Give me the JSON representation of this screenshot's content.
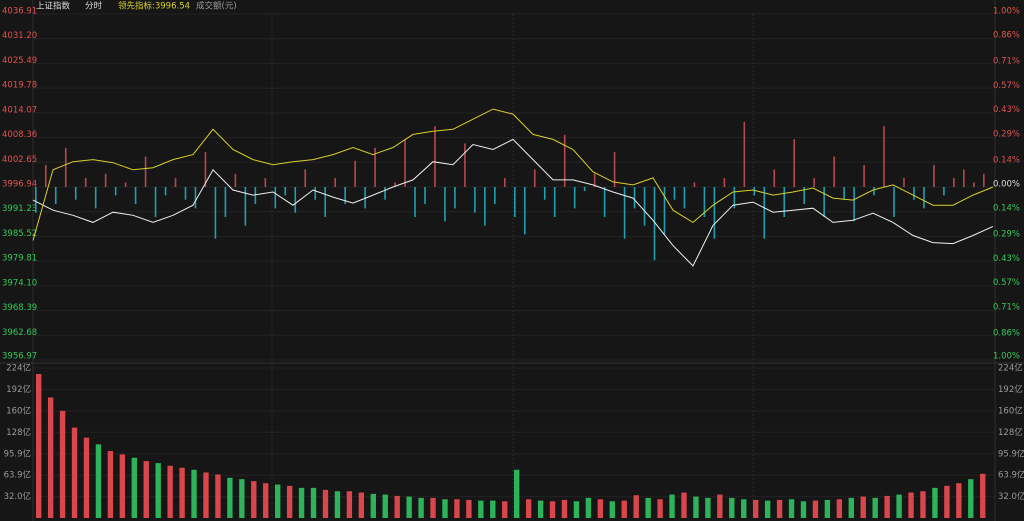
{
  "chart_data": [
    {
      "type": "line",
      "title": "上证指数",
      "subtitle": "分时",
      "ylim": [
        3956.97,
        4036.91
      ],
      "yticks": [
        4036.91,
        {
          "value": 4031.2,
          "label": "4031.20"
        },
        4025.49,
        4019.78,
        4014.07,
        4008.36,
        4002.65,
        3996.94,
        3991.23,
        3985.52,
        3979.81,
        {
          "value": 3974.1,
          "label": "3974.10"
        },
        3968.39,
        3962.68,
        3956.97
      ],
      "y2lim": [
        -1,
        1
      ],
      "y2ticks": [
        {
          "value": 1,
          "label": "1.00%"
        },
        {
          "value": 0.86,
          "label": "0.86%"
        },
        {
          "value": 0.71,
          "label": "0.71%"
        },
        {
          "value": 0.57,
          "label": "0.57%"
        },
        {
          "value": 0.43,
          "label": "0.43%"
        },
        {
          "value": 0.29,
          "label": "0.29%"
        },
        {
          "value": 0.14,
          "label": "0.14%"
        },
        {
          "value": 0,
          "label": "0.00%"
        },
        {
          "value": -0.14,
          "label": "0.14%"
        },
        {
          "value": -0.29,
          "label": "0.29%"
        },
        {
          "value": -0.43,
          "label": "0.43%"
        },
        {
          "value": -0.57,
          "label": "0.57%"
        },
        {
          "value": -0.71,
          "label": "0.71%"
        },
        {
          "value": -0.86,
          "label": "0.86%"
        },
        {
          "value": -1,
          "label": "1.00%"
        }
      ],
      "up_color": "#e0534f",
      "down_color": "#35c95a",
      "flat_color": "#dddddd",
      "series": [
        {
          "color": "#f0f0f0",
          "values": [
            3993.91,
            3991.58,
            3990.41,
            3988.77,
            3991.11,
            3990.41,
            3988.77,
            3990.41,
            3992.74,
            4000.92,
            3996.25,
            3995.08,
            3995.78,
            3992.74,
            3996.25,
            3994.61,
            3993.21,
            3995.08,
            3996.95,
            3998.59,
            4002.79,
            4002.09,
            4006.77,
            4005.6,
            4007.93,
            4003.26,
            3998.59,
            3998.59,
            3997.42,
            3995.78,
            3994.38,
            3989.24,
            3983.4,
            3978.72,
            3988.07,
            3992.74,
            3993.45,
            3991.11,
            3991.58,
            3992.04,
            3988.77,
            3989.24,
            3990.88,
            3988.77,
            3985.73,
            3984.1,
            3983.86,
            3985.73,
            3987.84
          ]
        },
        {
          "name": "领先指标:3996.54",
          "color": "#d8d02a",
          "values": [
            3984.57,
            4000.92,
            4002.79,
            4003.26,
            4002.56,
            4000.92,
            4001.39,
            4003.26,
            4004.43,
            4010.27,
            4005.6,
            4003.26,
            4002.09,
            4002.79,
            4003.26,
            4004.43,
            4006.06,
            4004.43,
            4006.06,
            4009.1,
            4009.8,
            4010.27,
            4012.61,
            4014.94,
            4013.78,
            4009.1,
            4007.93,
            4005.6,
            4000.46,
            3998.12,
            3997.42,
            3999.05,
            3991.58,
            3988.77,
            3992.74,
            3995.78,
            3996.25,
            3995.08,
            3995.78,
            3996.72,
            3994.38,
            3993.91,
            3996.25,
            3997.42,
            3995.08,
            3992.74,
            3992.74,
            3995.08,
            3996.95
          ]
        }
      ],
      "bars": {
        "up_color": "#b8484c",
        "down_color": "#1f9fb3",
        "values": [
          3991,
          4002,
          3993,
          4006,
          3994,
          3999,
          3992,
          4000,
          3995,
          3998,
          3993,
          4004,
          3990,
          3995,
          3999,
          3994,
          3992,
          4005,
          3985,
          3990,
          4000,
          3988,
          3993,
          3999,
          3992,
          3995,
          3991,
          4001,
          3994,
          3990,
          3999,
          3993,
          4003,
          3992,
          4006,
          3994,
          3998,
          4008,
          3990,
          3993,
          4011,
          3989,
          3992,
          4007,
          3991,
          3988,
          3993,
          3999,
          3990,
          3986,
          4001,
          3994,
          3990,
          4009,
          3992,
          3996,
          4000,
          3990,
          4005,
          3985,
          3992,
          3988,
          3980,
          3986,
          3994,
          3992,
          3998,
          3990,
          3985,
          3999,
          3992,
          4012,
          3995,
          3985,
          4001,
          3990,
          4008,
          3993,
          3999,
          3990,
          4004,
          3994,
          3989,
          4002,
          3995,
          4011,
          3990,
          3999,
          3994,
          3992,
          4002,
          3995,
          3999,
          4001,
          3998,
          4000
        ]
      }
    },
    {
      "type": "bar",
      "title": "成交额(元)",
      "ylim": [
        0,
        224
      ],
      "yticks": [
        {
          "value": 224,
          "label": "224亿"
        },
        {
          "value": 192,
          "label": "192亿"
        },
        {
          "value": 160,
          "label": "160亿"
        },
        {
          "value": 128,
          "label": "128亿"
        },
        {
          "value": 95.9,
          "label": "95.9亿"
        },
        {
          "value": 63.9,
          "label": "63.9亿"
        },
        {
          "value": 32,
          "label": "32.0亿"
        }
      ],
      "values": [
        215,
        180,
        160,
        135,
        120,
        110,
        100,
        95,
        90,
        85,
        82,
        78,
        75,
        72,
        68,
        65,
        60,
        58,
        55,
        52,
        50,
        48,
        45,
        45,
        42,
        40,
        40,
        38,
        36,
        35,
        33,
        32,
        30,
        30,
        28,
        28,
        27,
        26,
        26,
        25,
        72,
        28,
        26,
        25,
        27,
        25,
        30,
        28,
        25,
        26,
        34,
        30,
        28,
        35,
        38,
        32,
        30,
        35,
        30,
        28,
        27,
        26,
        27,
        28,
        25,
        26,
        27,
        28,
        30,
        32,
        30,
        33,
        35,
        38,
        40,
        45,
        48,
        52,
        58,
        66
      ],
      "colors": [
        "#d9464b",
        "#d9464b",
        "#d9464b",
        "#d9464b",
        "#d9464b",
        "#2db35a",
        "#d9464b",
        "#d9464b",
        "#2db35a",
        "#d9464b",
        "#2db35a",
        "#d9464b",
        "#d9464b",
        "#2db35a",
        "#d9464b",
        "#d9464b",
        "#2db35a",
        "#2db35a",
        "#d9464b",
        "#d9464b",
        "#2db35a",
        "#d9464b",
        "#2db35a",
        "#2db35a",
        "#d9464b",
        "#2db35a",
        "#d9464b",
        "#d9464b",
        "#2db35a",
        "#2db35a",
        "#d9464b",
        "#2db35a",
        "#2db35a",
        "#d9464b",
        "#2db35a",
        "#d9464b",
        "#d9464b",
        "#2db35a",
        "#2db35a",
        "#d9464b",
        "#2db35a",
        "#d9464b",
        "#2db35a",
        "#d9464b",
        "#d9464b",
        "#2db35a",
        "#2db35a",
        "#d9464b",
        "#2db35a",
        "#d9464b",
        "#d9464b",
        "#2db35a",
        "#d9464b",
        "#2db35a",
        "#d9464b",
        "#2db35a",
        "#2db35a",
        "#d9464b",
        "#2db35a",
        "#2db35a",
        "#d9464b",
        "#2db35a",
        "#d9464b",
        "#2db35a",
        "#2db35a",
        "#d9464b",
        "#2db35a",
        "#d9464b",
        "#2db35a",
        "#d9464b",
        "#2db35a",
        "#d9464b",
        "#2db35a",
        "#d9464b",
        "#d9464b",
        "#2db35a",
        "#d9464b",
        "#d9464b",
        "#2db35a",
        "#d9464b"
      ]
    }
  ]
}
